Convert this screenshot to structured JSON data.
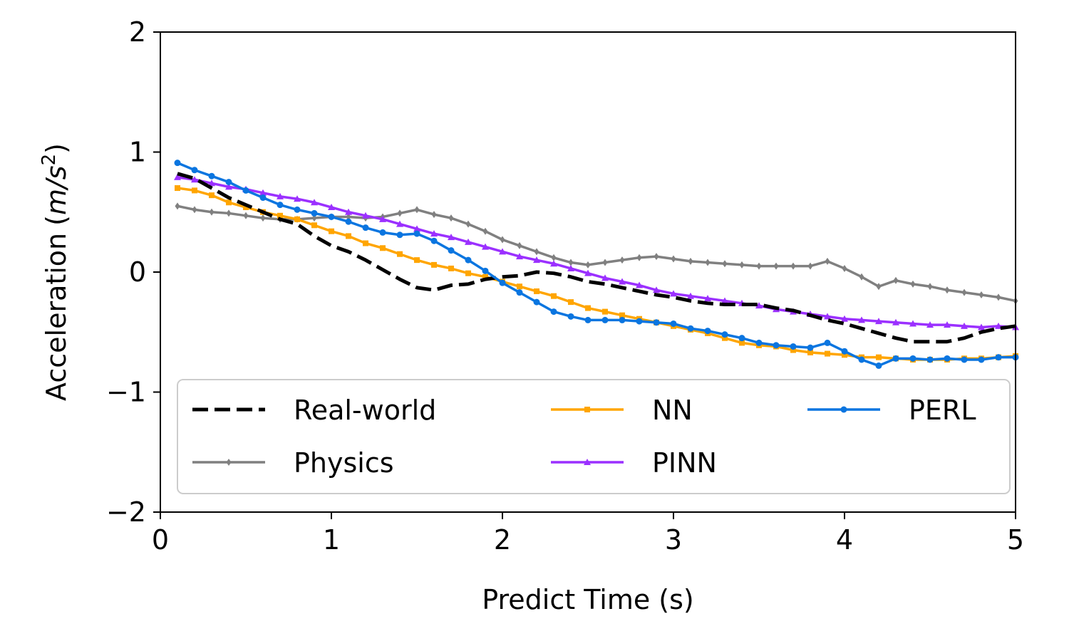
{
  "chart_data": {
    "type": "line",
    "title": "",
    "xlabel": "Predict Time (s)",
    "ylabel": "Acceleration",
    "ylabel_unit_prefix": "(",
    "ylabel_unit_var": "m/s",
    "ylabel_unit_sup": "2",
    "ylabel_unit_suffix": ")",
    "xlim": [
      0,
      5
    ],
    "ylim": [
      -2,
      2
    ],
    "xticks": [
      0,
      1,
      2,
      3,
      4,
      5
    ],
    "yticks": [
      -2,
      -1,
      0,
      1,
      2
    ],
    "xtick_labels": [
      "0",
      "1",
      "2",
      "3",
      "4",
      "5"
    ],
    "ytick_labels": [
      "−2",
      "−1",
      "0",
      "1",
      "2"
    ],
    "grid": false,
    "legend_position": "lower-center",
    "series": [
      {
        "name": "Real-world",
        "color": "#000000",
        "style": "dashed",
        "marker": "none",
        "x": [
          0.1,
          0.2,
          0.3,
          0.4,
          0.5,
          0.6,
          0.7,
          0.8,
          0.9,
          1.0,
          1.1,
          1.2,
          1.3,
          1.4,
          1.5,
          1.6,
          1.7,
          1.8,
          1.9,
          2.0,
          2.1,
          2.2,
          2.3,
          2.4,
          2.5,
          2.6,
          2.7,
          2.8,
          2.9,
          3.0,
          3.1,
          3.2,
          3.3,
          3.4,
          3.5,
          3.6,
          3.7,
          3.8,
          3.9,
          4.0,
          4.1,
          4.2,
          4.3,
          4.4,
          4.5,
          4.6,
          4.7,
          4.8,
          4.9,
          5.0
        ],
        "y": [
          0.82,
          0.78,
          0.7,
          0.62,
          0.56,
          0.5,
          0.44,
          0.4,
          0.3,
          0.22,
          0.17,
          0.1,
          0.02,
          -0.06,
          -0.13,
          -0.15,
          -0.11,
          -0.1,
          -0.06,
          -0.04,
          -0.03,
          0.0,
          -0.01,
          -0.04,
          -0.08,
          -0.1,
          -0.13,
          -0.16,
          -0.19,
          -0.21,
          -0.24,
          -0.26,
          -0.27,
          -0.27,
          -0.27,
          -0.3,
          -0.32,
          -0.36,
          -0.4,
          -0.43,
          -0.47,
          -0.51,
          -0.55,
          -0.58,
          -0.58,
          -0.58,
          -0.55,
          -0.5,
          -0.47,
          -0.45
        ]
      },
      {
        "name": "Physics",
        "color": "#808080",
        "style": "solid",
        "marker": "diamond",
        "x": [
          0.1,
          0.2,
          0.3,
          0.4,
          0.5,
          0.6,
          0.7,
          0.8,
          0.9,
          1.0,
          1.1,
          1.2,
          1.3,
          1.4,
          1.5,
          1.6,
          1.7,
          1.8,
          1.9,
          2.0,
          2.1,
          2.2,
          2.3,
          2.4,
          2.5,
          2.6,
          2.7,
          2.8,
          2.9,
          3.0,
          3.1,
          3.2,
          3.3,
          3.4,
          3.5,
          3.6,
          3.7,
          3.8,
          3.9,
          4.0,
          4.1,
          4.2,
          4.3,
          4.4,
          4.5,
          4.6,
          4.7,
          4.8,
          4.9,
          5.0
        ],
        "y": [
          0.55,
          0.52,
          0.5,
          0.49,
          0.47,
          0.45,
          0.44,
          0.44,
          0.45,
          0.46,
          0.46,
          0.45,
          0.46,
          0.49,
          0.52,
          0.48,
          0.45,
          0.4,
          0.34,
          0.27,
          0.22,
          0.17,
          0.12,
          0.08,
          0.06,
          0.08,
          0.1,
          0.12,
          0.13,
          0.11,
          0.09,
          0.08,
          0.07,
          0.06,
          0.05,
          0.05,
          0.05,
          0.05,
          0.09,
          0.03,
          -0.04,
          -0.12,
          -0.07,
          -0.1,
          -0.12,
          -0.15,
          -0.17,
          -0.19,
          -0.21,
          -0.24
        ]
      },
      {
        "name": "NN",
        "color": "#FFA500",
        "style": "solid",
        "marker": "square",
        "x": [
          0.1,
          0.2,
          0.3,
          0.4,
          0.5,
          0.6,
          0.7,
          0.8,
          0.9,
          1.0,
          1.1,
          1.2,
          1.3,
          1.4,
          1.5,
          1.6,
          1.7,
          1.8,
          1.9,
          2.0,
          2.1,
          2.2,
          2.3,
          2.4,
          2.5,
          2.6,
          2.7,
          2.8,
          2.9,
          3.0,
          3.1,
          3.2,
          3.3,
          3.4,
          3.5,
          3.6,
          3.7,
          3.8,
          3.9,
          4.0,
          4.1,
          4.2,
          4.3,
          4.4,
          4.5,
          4.6,
          4.7,
          4.8,
          4.9,
          5.0
        ],
        "y": [
          0.7,
          0.68,
          0.64,
          0.58,
          0.54,
          0.5,
          0.47,
          0.44,
          0.39,
          0.34,
          0.3,
          0.24,
          0.2,
          0.15,
          0.1,
          0.06,
          0.03,
          -0.01,
          -0.04,
          -0.08,
          -0.12,
          -0.16,
          -0.2,
          -0.25,
          -0.3,
          -0.33,
          -0.36,
          -0.39,
          -0.42,
          -0.45,
          -0.48,
          -0.51,
          -0.55,
          -0.59,
          -0.61,
          -0.62,
          -0.65,
          -0.67,
          -0.68,
          -0.69,
          -0.71,
          -0.71,
          -0.72,
          -0.73,
          -0.73,
          -0.73,
          -0.72,
          -0.72,
          -0.71,
          -0.7
        ]
      },
      {
        "name": "PINN",
        "color": "#9B30FF",
        "style": "solid",
        "marker": "triangle",
        "x": [
          0.1,
          0.2,
          0.3,
          0.4,
          0.5,
          0.6,
          0.7,
          0.8,
          0.9,
          1.0,
          1.1,
          1.2,
          1.3,
          1.4,
          1.5,
          1.6,
          1.7,
          1.8,
          1.9,
          2.0,
          2.1,
          2.2,
          2.3,
          2.4,
          2.5,
          2.6,
          2.7,
          2.8,
          2.9,
          3.0,
          3.1,
          3.2,
          3.3,
          3.4,
          3.5,
          3.6,
          3.7,
          3.8,
          3.9,
          4.0,
          4.1,
          4.2,
          4.3,
          4.4,
          4.5,
          4.6,
          4.7,
          4.8,
          4.9,
          5.0
        ],
        "y": [
          0.79,
          0.77,
          0.74,
          0.71,
          0.69,
          0.66,
          0.63,
          0.61,
          0.58,
          0.54,
          0.5,
          0.47,
          0.44,
          0.4,
          0.36,
          0.32,
          0.29,
          0.25,
          0.21,
          0.17,
          0.13,
          0.1,
          0.07,
          0.03,
          -0.01,
          -0.05,
          -0.08,
          -0.11,
          -0.15,
          -0.18,
          -0.2,
          -0.22,
          -0.24,
          -0.26,
          -0.28,
          -0.31,
          -0.33,
          -0.35,
          -0.37,
          -0.39,
          -0.4,
          -0.41,
          -0.42,
          -0.43,
          -0.44,
          -0.44,
          -0.45,
          -0.46,
          -0.45,
          -0.46
        ]
      },
      {
        "name": "PERL",
        "color": "#0A75E0",
        "style": "solid",
        "marker": "circle",
        "x": [
          0.1,
          0.2,
          0.3,
          0.4,
          0.5,
          0.6,
          0.7,
          0.8,
          0.9,
          1.0,
          1.1,
          1.2,
          1.3,
          1.4,
          1.5,
          1.6,
          1.7,
          1.8,
          1.9,
          2.0,
          2.1,
          2.2,
          2.3,
          2.4,
          2.5,
          2.6,
          2.7,
          2.8,
          2.9,
          3.0,
          3.1,
          3.2,
          3.3,
          3.4,
          3.5,
          3.6,
          3.7,
          3.8,
          3.9,
          4.0,
          4.1,
          4.2,
          4.3,
          4.4,
          4.5,
          4.6,
          4.7,
          4.8,
          4.9,
          5.0
        ],
        "y": [
          0.91,
          0.85,
          0.8,
          0.75,
          0.68,
          0.62,
          0.56,
          0.52,
          0.49,
          0.46,
          0.42,
          0.37,
          0.33,
          0.31,
          0.32,
          0.26,
          0.18,
          0.1,
          0.01,
          -0.09,
          -0.17,
          -0.25,
          -0.33,
          -0.37,
          -0.4,
          -0.4,
          -0.4,
          -0.41,
          -0.42,
          -0.43,
          -0.47,
          -0.49,
          -0.52,
          -0.55,
          -0.59,
          -0.61,
          -0.62,
          -0.63,
          -0.59,
          -0.66,
          -0.73,
          -0.78,
          -0.72,
          -0.72,
          -0.73,
          -0.72,
          -0.73,
          -0.73,
          -0.71,
          -0.71
        ]
      }
    ]
  }
}
